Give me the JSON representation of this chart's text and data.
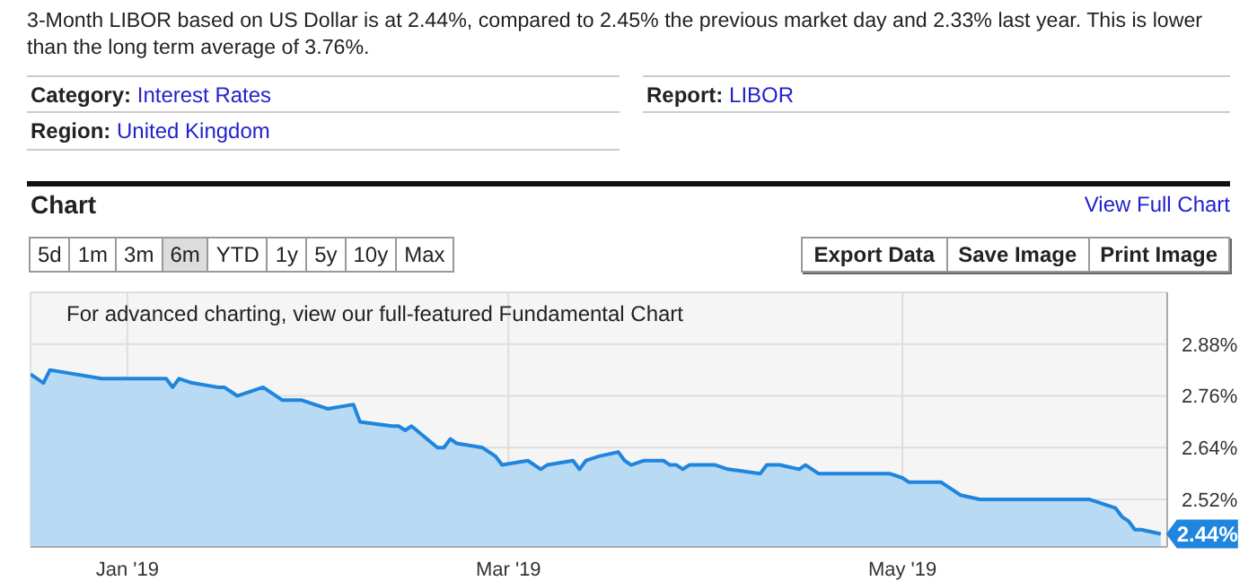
{
  "chart_data": {
    "type": "area",
    "title": "Chart",
    "subtitle": "3-Month LIBOR based on US Dollar is at 2.44%, compared to 2.45% the previous market day and 2.33% last year. This is lower than the long term average of 3.76%.",
    "annotations": [
      "Category: Interest Rates",
      "Region: United Kingdom",
      "Report: LIBOR",
      "View Full Chart",
      "5d",
      "1m",
      "3m",
      "6m",
      "YTD",
      "1y",
      "5y",
      "10y",
      "Max",
      "Export Data",
      "Save Image",
      "Print Image",
      "For advanced charting, view our full-featured Fundamental Chart"
    ],
    "x": [
      "2018-12-17",
      "2018-12-19",
      "2018-12-20",
      "2018-12-28",
      "2019-01-03",
      "2019-01-04",
      "2019-01-07",
      "2019-01-08",
      "2019-01-09",
      "2019-01-11",
      "2019-01-15",
      "2019-01-16",
      "2019-01-18",
      "2019-01-22",
      "2019-01-25",
      "2019-01-28",
      "2019-01-30",
      "2019-02-01",
      "2019-02-05",
      "2019-02-06",
      "2019-02-11",
      "2019-02-12",
      "2019-02-13",
      "2019-02-14",
      "2019-02-18",
      "2019-02-19",
      "2019-02-20",
      "2019-02-21",
      "2019-02-25",
      "2019-02-27",
      "2019-02-28",
      "2019-03-04",
      "2019-03-06",
      "2019-03-07",
      "2019-03-11",
      "2019-03-12",
      "2019-03-13",
      "2019-03-15",
      "2019-03-18",
      "2019-03-19",
      "2019-03-20",
      "2019-03-22",
      "2019-03-25",
      "2019-03-26",
      "2019-03-27",
      "2019-03-28",
      "2019-03-29",
      "2019-04-01",
      "2019-04-02",
      "2019-04-04",
      "2019-04-09",
      "2019-04-10",
      "2019-04-12",
      "2019-04-15",
      "2019-04-16",
      "2019-04-18",
      "2019-04-23",
      "2019-04-24",
      "2019-04-29",
      "2019-05-01",
      "2019-05-02",
      "2019-05-07",
      "2019-05-09",
      "2019-05-10",
      "2019-05-13",
      "2019-05-14",
      "2019-05-16",
      "2019-05-23",
      "2019-05-24",
      "2019-05-29",
      "2019-05-30",
      "2019-06-03",
      "2019-06-04",
      "2019-06-05",
      "2019-06-06",
      "2019-06-07",
      "2019-06-10"
    ],
    "series": [
      {
        "color": "#1f85de",
        "values": [
          2.81,
          2.79,
          2.82,
          2.8,
          2.8,
          2.8,
          2.8,
          2.78,
          2.8,
          2.79,
          2.78,
          2.78,
          2.76,
          2.78,
          2.75,
          2.75,
          2.74,
          2.73,
          2.74,
          2.7,
          2.69,
          2.69,
          2.68,
          2.69,
          2.64,
          2.64,
          2.66,
          2.65,
          2.64,
          2.62,
          2.6,
          2.61,
          2.59,
          2.6,
          2.61,
          2.59,
          2.61,
          2.62,
          2.63,
          2.61,
          2.6,
          2.61,
          2.61,
          2.6,
          2.6,
          2.59,
          2.6,
          2.6,
          2.6,
          2.59,
          2.58,
          2.6,
          2.6,
          2.59,
          2.6,
          2.58,
          2.58,
          2.58,
          2.58,
          2.57,
          2.56,
          2.56,
          2.54,
          2.53,
          2.52,
          2.52,
          2.52,
          2.52,
          2.52,
          2.52,
          2.52,
          2.5,
          2.48,
          2.47,
          2.45,
          2.45,
          2.44
        ],
        "value_labels": [
          null,
          null,
          null,
          null,
          null,
          null,
          null,
          null,
          null,
          null,
          null,
          null,
          null,
          null,
          null,
          null,
          null,
          null,
          null,
          null,
          null,
          null,
          null,
          null,
          null,
          null,
          null,
          null,
          null,
          null,
          null,
          null,
          null,
          null,
          null,
          null,
          null,
          null,
          null,
          null,
          null,
          null,
          null,
          null,
          null,
          null,
          null,
          null,
          null,
          null,
          null,
          null,
          null,
          null,
          null,
          null,
          null,
          null,
          null,
          null,
          null,
          null,
          null,
          null,
          null,
          null,
          null,
          null,
          null,
          null,
          null,
          null,
          null,
          null,
          null,
          null,
          "2.44%"
        ]
      }
    ],
    "xlim": [
      "2018-12-17",
      "2019-06-11"
    ],
    "xticks": [
      {
        "value": "2019-01-01",
        "label": "Jan '19"
      },
      {
        "value": "2019-03-01",
        "label": "Mar '19"
      },
      {
        "value": "2019-05-01",
        "label": "May '19"
      }
    ],
    "ylim": [
      2.41,
      3.0
    ],
    "yticks": [
      {
        "value": 2.52,
        "label": "2.52%"
      },
      {
        "value": 2.64,
        "label": "2.64%"
      },
      {
        "value": 2.76,
        "label": "2.76%"
      },
      {
        "value": 2.88,
        "label": "2.88%"
      }
    ],
    "grid": true,
    "marker": "none",
    "line_style": "solid"
  }
}
